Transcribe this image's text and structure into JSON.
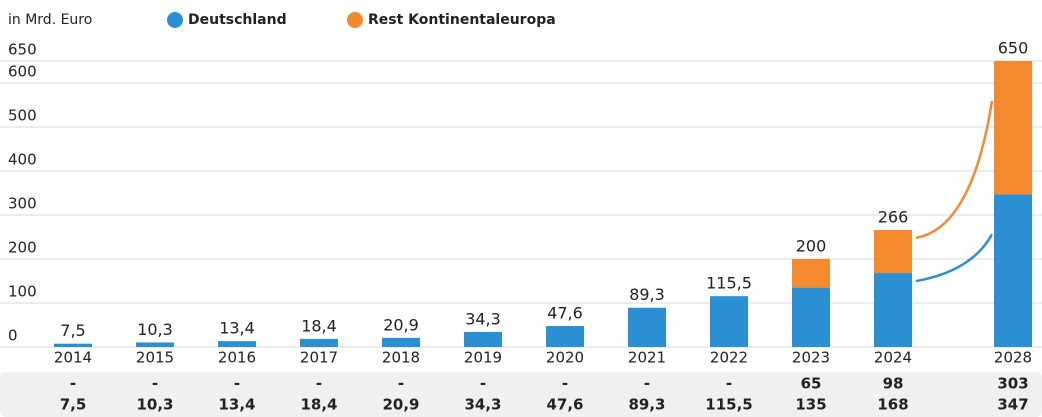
{
  "chart_data": {
    "type": "stacked_bar",
    "unit_label": "in Mrd. Euro",
    "categories": [
      "2014",
      "2015",
      "2016",
      "2017",
      "2018",
      "2019",
      "2020",
      "2021",
      "2022",
      "2023",
      "2024",
      "2028"
    ],
    "series": [
      {
        "name": "Deutschland",
        "color": "#2a8fd3",
        "values": [
          7.5,
          10.3,
          13.4,
          18.4,
          20.9,
          34.3,
          47.6,
          89.3,
          115.5,
          135,
          168,
          347
        ],
        "value_labels": [
          "7,5",
          "10,3",
          "13,4",
          "18,4",
          "20,9",
          "34,3",
          "47,6",
          "89,3",
          "115,5",
          "135",
          "168",
          "347"
        ]
      },
      {
        "name": "Rest Kontinentaleuropa",
        "color": "#f5892e",
        "values": [
          null,
          null,
          null,
          null,
          null,
          null,
          null,
          null,
          null,
          65,
          98,
          303
        ],
        "value_labels": [
          "-",
          "-",
          "-",
          "-",
          "-",
          "-",
          "-",
          "-",
          "-",
          "65",
          "98",
          "303"
        ]
      }
    ],
    "totals": [
      {
        "value": 7.5,
        "label": "7,5"
      },
      {
        "value": 10.3,
        "label": "10,3"
      },
      {
        "value": 13.4,
        "label": "13,4"
      },
      {
        "value": 18.4,
        "label": "18,4"
      },
      {
        "value": 20.9,
        "label": "20,9"
      },
      {
        "value": 34.3,
        "label": "34,3"
      },
      {
        "value": 47.6,
        "label": "47,6"
      },
      {
        "value": 89.3,
        "label": "89,3"
      },
      {
        "value": 115.5,
        "label": "115,5"
      },
      200,
      266,
      650
    ],
    "ylim": [
      0,
      650
    ],
    "yticks": [
      0,
      100,
      200,
      300,
      400,
      500,
      600,
      650
    ],
    "grid": true
  }
}
